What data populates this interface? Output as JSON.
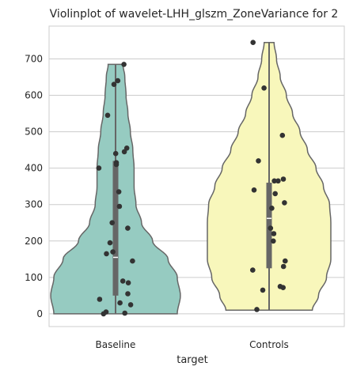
{
  "chart_data": {
    "type": "violin",
    "title": "Violinplot of wavelet-LHH_glszm_ZoneVariance for 2",
    "xlabel": "target",
    "ylabel": "",
    "ylim": [
      -35,
      790
    ],
    "yticks": [
      0,
      100,
      200,
      300,
      400,
      500,
      600,
      700
    ],
    "ytick_labels": [
      "0",
      "100",
      "200",
      "300",
      "400",
      "500",
      "600",
      "700"
    ],
    "grid": true,
    "categories": [
      "Baseline",
      "Controls"
    ],
    "series": [
      {
        "category": "Baseline",
        "color": "#96cbc1",
        "range": [
          0,
          685
        ],
        "quartiles": [
          50,
          155,
          420
        ],
        "median": 155,
        "density": [
          [
            0,
            1.0
          ],
          [
            50,
            1.05
          ],
          [
            100,
            1.0
          ],
          [
            150,
            0.85
          ],
          [
            200,
            0.6
          ],
          [
            250,
            0.42
          ],
          [
            300,
            0.33
          ],
          [
            350,
            0.3
          ],
          [
            400,
            0.3
          ],
          [
            450,
            0.28
          ],
          [
            500,
            0.24
          ],
          [
            550,
            0.2
          ],
          [
            600,
            0.17
          ],
          [
            650,
            0.15
          ],
          [
            685,
            0.12
          ]
        ],
        "points": [
          685,
          640,
          630,
          545,
          455,
          445,
          440,
          415,
          410,
          400,
          335,
          295,
          250,
          235,
          195,
          170,
          165,
          145,
          90,
          85,
          55,
          40,
          30,
          25,
          5,
          2,
          0
        ]
      },
      {
        "category": "Controls",
        "color": "#f8f7bb",
        "range": [
          10,
          745
        ],
        "quartiles": [
          125,
          262,
          360
        ],
        "median": 262,
        "density": [
          [
            10,
            0.7
          ],
          [
            50,
            0.8
          ],
          [
            100,
            0.93
          ],
          [
            150,
            1.0
          ],
          [
            200,
            1.0
          ],
          [
            250,
            1.0
          ],
          [
            300,
            0.98
          ],
          [
            350,
            0.88
          ],
          [
            400,
            0.76
          ],
          [
            450,
            0.62
          ],
          [
            500,
            0.5
          ],
          [
            550,
            0.38
          ],
          [
            600,
            0.28
          ],
          [
            650,
            0.18
          ],
          [
            700,
            0.12
          ],
          [
            745,
            0.08
          ]
        ],
        "points": [
          745,
          620,
          490,
          420,
          370,
          365,
          365,
          340,
          330,
          305,
          290,
          235,
          220,
          200,
          145,
          130,
          120,
          75,
          72,
          65,
          12
        ]
      }
    ]
  }
}
